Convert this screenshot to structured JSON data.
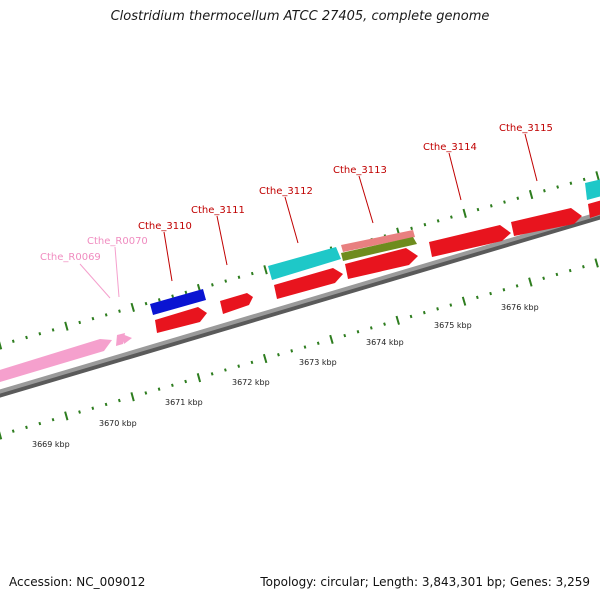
{
  "title": "Clostridium thermocellum ATCC 27405, complete genome",
  "footer": {
    "accession": "Accession: NC_009012",
    "topology": "Topology: circular; Length: 3,843,301 bp; Genes: 3,259"
  },
  "colors": {
    "backbone": "#8c8c8c",
    "tick": "#2e7d1f",
    "gene_label": "#c00000",
    "rna_label": "#f08cc0",
    "cds_forward": "#e8141e",
    "cds_reverse": "#0a14d2",
    "cyan_feature": "#1ec8c8",
    "salmon_feature": "#e88080",
    "olive_feature": "#6e8c1e",
    "pink_rna": "#f5a0cd"
  },
  "kbp_labels": [
    {
      "text": "3669 kbp",
      "kb": 3669
    },
    {
      "text": "3670 kbp",
      "kb": 3670
    },
    {
      "text": "3671 kbp",
      "kb": 3671
    },
    {
      "text": "3672 kbp",
      "kb": 3672
    },
    {
      "text": "3673 kbp",
      "kb": 3673
    },
    {
      "text": "3674 kbp",
      "kb": 3674
    },
    {
      "text": "3675 kbp",
      "kb": 3675
    },
    {
      "text": "3676 kbp",
      "kb": 3676
    }
  ],
  "gene_labels": [
    {
      "text": "Cthe_R0069",
      "kind": "rna"
    },
    {
      "text": "Cthe_R0070",
      "kind": "rna"
    },
    {
      "text": "Cthe_3110",
      "kind": "gene"
    },
    {
      "text": "Cthe_3111",
      "kind": "gene"
    },
    {
      "text": "Cthe_3112",
      "kind": "gene"
    },
    {
      "text": "Cthe_3113",
      "kind": "gene"
    },
    {
      "text": "Cthe_3114",
      "kind": "gene"
    },
    {
      "text": "Cthe_3115",
      "kind": "gene"
    }
  ]
}
